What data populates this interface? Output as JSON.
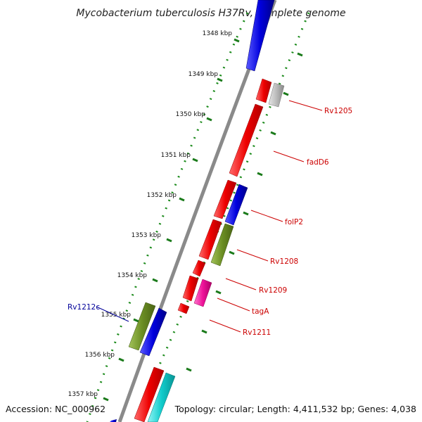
{
  "title": "Mycobacterium tuberculosis H37Rv, complete genome",
  "footer": {
    "accession": "Accession: NC_000962",
    "summary": "Topology: circular; Length: 4,411,532 bp; Genes: 4,038"
  },
  "scale_labels": [
    "1348 kbp",
    "1349 kbp",
    "1350 kbp",
    "1351 kbp",
    "1352 kbp",
    "1353 kbp",
    "1354 kbp",
    "1355 kbp",
    "1356 kbp",
    "1357 kbp"
  ],
  "gene_labels": [
    {
      "text": "Rv1205",
      "color": "#cc0000"
    },
    {
      "text": "fadD6",
      "color": "#cc0000"
    },
    {
      "text": "folP2",
      "color": "#cc0000"
    },
    {
      "text": "Rv1208",
      "color": "#cc0000"
    },
    {
      "text": "Rv1209",
      "color": "#cc0000"
    },
    {
      "text": "tagA",
      "color": "#cc0000"
    },
    {
      "text": "Rv1211",
      "color": "#cc0000"
    },
    {
      "text": "Rv1212c",
      "color": "#000099"
    }
  ],
  "colors": {
    "backbone": "#8a8a8a",
    "dotted_track": "#1a8a1a",
    "red_gene": "#ee0000",
    "blue_gene": "#0000dd",
    "olive_gene": "#6b8e23",
    "pink_gene": "#ee1199",
    "cyan_gene": "#11cccc",
    "grey_gene": "#bbbbbb"
  }
}
